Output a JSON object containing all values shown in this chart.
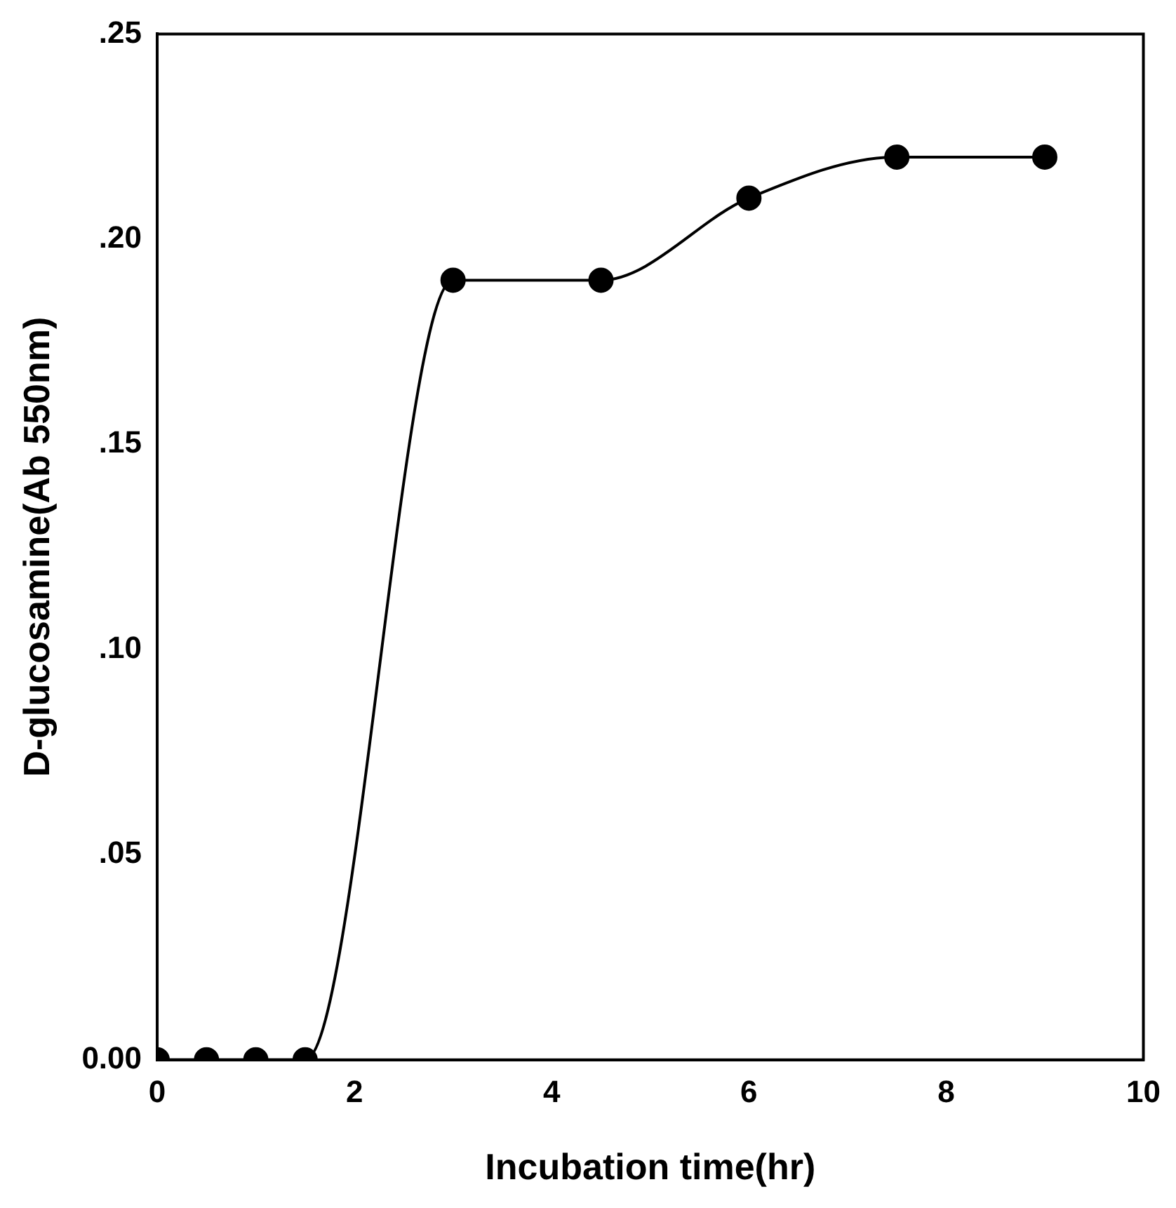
{
  "chart_data": {
    "type": "line",
    "xlabel": "Incubation time(hr)",
    "ylabel": "D-glucosamine(Ab 550nm)",
    "x": [
      0,
      0.5,
      1,
      1.5,
      3,
      4.5,
      6,
      7.5,
      9
    ],
    "series": [
      {
        "color": "#000000",
        "values": [
          0,
          0,
          0,
          0,
          0.19,
          0.19,
          0.21,
          0.22,
          0.22
        ]
      }
    ],
    "xlim": [
      0,
      10
    ],
    "xticks": [
      0,
      2,
      4,
      6,
      8,
      10
    ],
    "ylim": [
      0,
      0.25
    ],
    "yticks": [
      {
        "value": 0,
        "label": "0.00"
      },
      {
        "value": 0.05,
        "label": ".05"
      },
      {
        "value": 0.1,
        "label": ".10"
      },
      {
        "value": 0.15,
        "label": ".15"
      },
      {
        "value": 0.2,
        "label": ".20"
      },
      {
        "value": 0.25,
        "label": ".25"
      }
    ],
    "grid": false,
    "legend": false,
    "marker": "circle",
    "line_style": "solid"
  }
}
